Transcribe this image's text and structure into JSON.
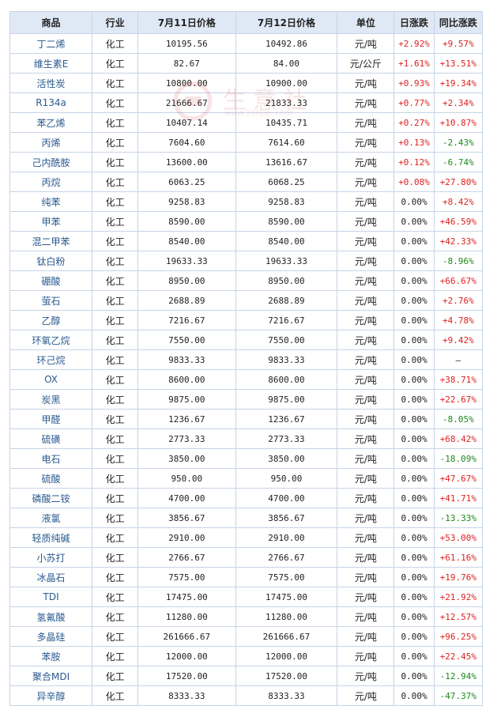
{
  "headers": [
    "商品",
    "行业",
    "7月11日价格",
    "7月12日价格",
    "单位",
    "日涨跌",
    "同比涨跌"
  ],
  "rows": [
    {
      "name": "丁二烯",
      "industry": "化工",
      "price1": "10195.56",
      "price2": "10492.86",
      "unit": "元/吨",
      "daily": "+2.92%",
      "yoy": "+9.57%"
    },
    {
      "name": "维生素E",
      "industry": "化工",
      "price1": "82.67",
      "price2": "84.00",
      "unit": "元/公斤",
      "daily": "+1.61%",
      "yoy": "+13.51%"
    },
    {
      "name": "活性炭",
      "industry": "化工",
      "price1": "10800.00",
      "price2": "10900.00",
      "unit": "元/吨",
      "daily": "+0.93%",
      "yoy": "+19.34%"
    },
    {
      "name": "R134a",
      "industry": "化工",
      "price1": "21666.67",
      "price2": "21833.33",
      "unit": "元/吨",
      "daily": "+0.77%",
      "yoy": "+2.34%"
    },
    {
      "name": "苯乙烯",
      "industry": "化工",
      "price1": "10407.14",
      "price2": "10435.71",
      "unit": "元/吨",
      "daily": "+0.27%",
      "yoy": "+10.87%"
    },
    {
      "name": "丙烯",
      "industry": "化工",
      "price1": "7604.60",
      "price2": "7614.60",
      "unit": "元/吨",
      "daily": "+0.13%",
      "yoy": "-2.43%"
    },
    {
      "name": "己内酰胺",
      "industry": "化工",
      "price1": "13600.00",
      "price2": "13616.67",
      "unit": "元/吨",
      "daily": "+0.12%",
      "yoy": "-6.74%"
    },
    {
      "name": "丙烷",
      "industry": "化工",
      "price1": "6063.25",
      "price2": "6068.25",
      "unit": "元/吨",
      "daily": "+0.08%",
      "yoy": "+27.80%"
    },
    {
      "name": "纯苯",
      "industry": "化工",
      "price1": "9258.83",
      "price2": "9258.83",
      "unit": "元/吨",
      "daily": "0.00%",
      "yoy": "+8.42%"
    },
    {
      "name": "甲苯",
      "industry": "化工",
      "price1": "8590.00",
      "price2": "8590.00",
      "unit": "元/吨",
      "daily": "0.00%",
      "yoy": "+46.59%"
    },
    {
      "name": "混二甲苯",
      "industry": "化工",
      "price1": "8540.00",
      "price2": "8540.00",
      "unit": "元/吨",
      "daily": "0.00%",
      "yoy": "+42.33%"
    },
    {
      "name": "钛白粉",
      "industry": "化工",
      "price1": "19633.33",
      "price2": "19633.33",
      "unit": "元/吨",
      "daily": "0.00%",
      "yoy": "-8.96%"
    },
    {
      "name": "硼酸",
      "industry": "化工",
      "price1": "8950.00",
      "price2": "8950.00",
      "unit": "元/吨",
      "daily": "0.00%",
      "yoy": "+66.67%"
    },
    {
      "name": "萤石",
      "industry": "化工",
      "price1": "2688.89",
      "price2": "2688.89",
      "unit": "元/吨",
      "daily": "0.00%",
      "yoy": "+2.76%"
    },
    {
      "name": "乙醇",
      "industry": "化工",
      "price1": "7216.67",
      "price2": "7216.67",
      "unit": "元/吨",
      "daily": "0.00%",
      "yoy": "+4.78%"
    },
    {
      "name": "环氧乙烷",
      "industry": "化工",
      "price1": "7550.00",
      "price2": "7550.00",
      "unit": "元/吨",
      "daily": "0.00%",
      "yoy": "+9.42%"
    },
    {
      "name": "环己烷",
      "industry": "化工",
      "price1": "9833.33",
      "price2": "9833.33",
      "unit": "元/吨",
      "daily": "0.00%",
      "yoy": "—"
    },
    {
      "name": "OX",
      "industry": "化工",
      "price1": "8600.00",
      "price2": "8600.00",
      "unit": "元/吨",
      "daily": "0.00%",
      "yoy": "+38.71%"
    },
    {
      "name": "炭黑",
      "industry": "化工",
      "price1": "9875.00",
      "price2": "9875.00",
      "unit": "元/吨",
      "daily": "0.00%",
      "yoy": "+22.67%"
    },
    {
      "name": "甲醛",
      "industry": "化工",
      "price1": "1236.67",
      "price2": "1236.67",
      "unit": "元/吨",
      "daily": "0.00%",
      "yoy": "-8.05%"
    },
    {
      "name": "硫磺",
      "industry": "化工",
      "price1": "2773.33",
      "price2": "2773.33",
      "unit": "元/吨",
      "daily": "0.00%",
      "yoy": "+68.42%"
    },
    {
      "name": "电石",
      "industry": "化工",
      "price1": "3850.00",
      "price2": "3850.00",
      "unit": "元/吨",
      "daily": "0.00%",
      "yoy": "-18.09%"
    },
    {
      "name": "硫酸",
      "industry": "化工",
      "price1": "950.00",
      "price2": "950.00",
      "unit": "元/吨",
      "daily": "0.00%",
      "yoy": "+47.67%"
    },
    {
      "name": "磷酸二铵",
      "industry": "化工",
      "price1": "4700.00",
      "price2": "4700.00",
      "unit": "元/吨",
      "daily": "0.00%",
      "yoy": "+41.71%"
    },
    {
      "name": "液氯",
      "industry": "化工",
      "price1": "3856.67",
      "price2": "3856.67",
      "unit": "元/吨",
      "daily": "0.00%",
      "yoy": "-13.33%"
    },
    {
      "name": "轻质纯碱",
      "industry": "化工",
      "price1": "2910.00",
      "price2": "2910.00",
      "unit": "元/吨",
      "daily": "0.00%",
      "yoy": "+53.00%"
    },
    {
      "name": "小苏打",
      "industry": "化工",
      "price1": "2766.67",
      "price2": "2766.67",
      "unit": "元/吨",
      "daily": "0.00%",
      "yoy": "+61.16%"
    },
    {
      "name": "冰晶石",
      "industry": "化工",
      "price1": "7575.00",
      "price2": "7575.00",
      "unit": "元/吨",
      "daily": "0.00%",
      "yoy": "+19.76%"
    },
    {
      "name": "TDI",
      "industry": "化工",
      "price1": "17475.00",
      "price2": "17475.00",
      "unit": "元/吨",
      "daily": "0.00%",
      "yoy": "+21.92%"
    },
    {
      "name": "氢氟酸",
      "industry": "化工",
      "price1": "11280.00",
      "price2": "11280.00",
      "unit": "元/吨",
      "daily": "0.00%",
      "yoy": "+12.57%"
    },
    {
      "name": "多晶硅",
      "industry": "化工",
      "price1": "261666.67",
      "price2": "261666.67",
      "unit": "元/吨",
      "daily": "0.00%",
      "yoy": "+96.25%"
    },
    {
      "name": "苯胺",
      "industry": "化工",
      "price1": "12000.00",
      "price2": "12000.00",
      "unit": "元/吨",
      "daily": "0.00%",
      "yoy": "+22.45%"
    },
    {
      "name": "聚合MDI",
      "industry": "化工",
      "price1": "17520.00",
      "price2": "17520.00",
      "unit": "元/吨",
      "daily": "0.00%",
      "yoy": "-12.94%"
    },
    {
      "name": "异辛醇",
      "industry": "化工",
      "price1": "8333.33",
      "price2": "8333.33",
      "unit": "元/吨",
      "daily": "0.00%",
      "yoy": "-47.37%"
    }
  ],
  "watermark": {
    "text": "生意社",
    "sub": "www.100ppi.com"
  },
  "colors": {
    "header_bg": "#dfe8f5",
    "border": "#c7d4e6",
    "up": "#e02020",
    "down": "#1a8a1a",
    "name": "#2a5a8e"
  }
}
